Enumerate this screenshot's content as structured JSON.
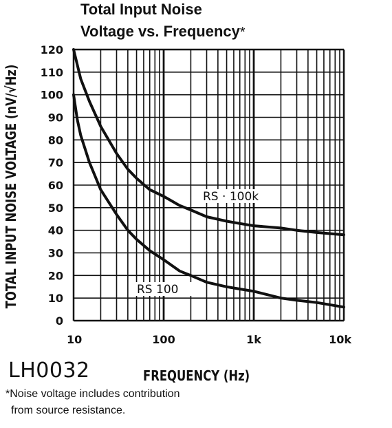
{
  "title_line_1": "Total Input Noise",
  "title_line_2": "Voltage vs. Frequency",
  "title_asterisk": "*",
  "device": "LH0032",
  "footnote_line_1": "*Noise voltage includes contribution",
  "footnote_line_2": "from source resistance.",
  "chart_data": {
    "type": "line",
    "xlabel": "FREQUENCY (Hz)",
    "ylabel": "TOTAL INPUT NOISE VOLTAGE (nV/√Hz)",
    "xscale": "log",
    "xlim": [
      10,
      10000
    ],
    "ylim": [
      0,
      120
    ],
    "x_ticks": [
      10,
      100,
      1000,
      10000
    ],
    "x_tick_labels": [
      "10",
      "100",
      "1k",
      "10k"
    ],
    "y_ticks": [
      0,
      10,
      20,
      30,
      40,
      50,
      60,
      70,
      80,
      90,
      100,
      110,
      120
    ],
    "y_tick_labels": [
      "0",
      "10",
      "20",
      "30",
      "40",
      "50",
      "60",
      "70",
      "80",
      "90",
      "100",
      "110",
      "120"
    ],
    "grid": true,
    "line_color": "#111111",
    "series": [
      {
        "name": "RS = 100k",
        "label_text": "RS · 100k",
        "x": [
          10,
          12,
          15,
          20,
          30,
          40,
          50,
          70,
          100,
          150,
          200,
          300,
          500,
          700,
          1000,
          2000,
          3000,
          5000,
          10000
        ],
        "y": [
          120,
          107,
          97,
          86,
          74,
          67,
          63,
          58,
          55,
          51,
          49,
          46,
          44,
          43,
          42,
          41,
          40,
          39,
          38
        ]
      },
      {
        "name": "RS = 100",
        "label_text": "RS   100",
        "x": [
          10,
          11,
          12,
          15,
          20,
          30,
          40,
          50,
          70,
          100,
          150,
          200,
          300,
          500,
          700,
          1000,
          2000,
          3000,
          5000,
          10000
        ],
        "y": [
          100,
          89,
          82,
          70,
          58,
          47,
          40,
          36,
          31,
          27,
          22,
          20,
          17,
          15,
          14,
          13,
          10,
          9,
          8,
          6
        ]
      }
    ]
  }
}
